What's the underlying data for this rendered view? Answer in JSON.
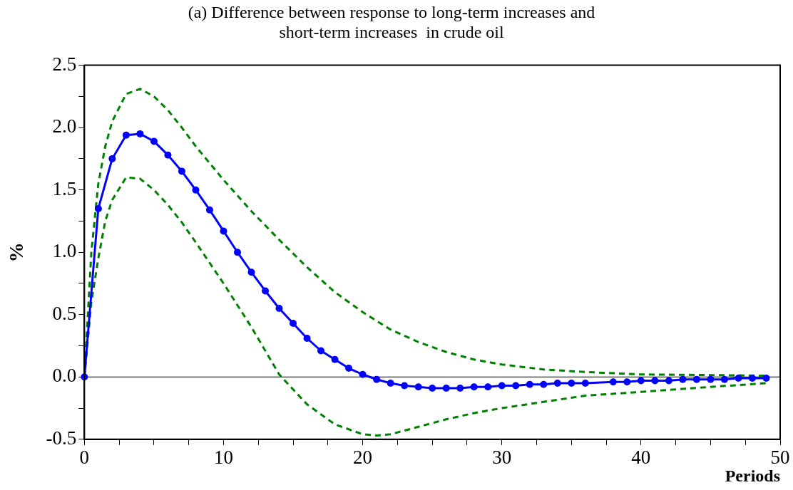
{
  "chart_data": {
    "type": "line",
    "title": "(a) Difference between response to long-term increases and short-term increases  in crude oil",
    "xlabel": "Periods",
    "ylabel": "%",
    "xlim": [
      0,
      50
    ],
    "ylim": [
      -0.5,
      2.5
    ],
    "xticks": [
      0,
      {
        "value": 2.5,
        "label": null
      },
      {
        "value": 5,
        "label": null
      },
      {
        "value": 7.5,
        "label": null
      },
      10,
      {
        "value": 12.5,
        "label": null
      },
      {
        "value": 15,
        "label": null
      },
      {
        "value": 17.5,
        "label": null
      },
      20,
      {
        "value": 22.5,
        "label": null
      },
      {
        "value": 25,
        "label": null
      },
      {
        "value": 27.5,
        "label": null
      },
      30,
      {
        "value": 32.5,
        "label": null
      },
      {
        "value": 35,
        "label": null
      },
      {
        "value": 37.5,
        "label": null
      },
      40,
      {
        "value": 42.5,
        "label": null
      },
      {
        "value": 45,
        "label": null
      },
      {
        "value": 47.5,
        "label": null
      },
      50
    ],
    "yticks": [
      {
        "value": -0.5,
        "label": "-0.5"
      },
      {
        "value": -0.25,
        "label": null
      },
      {
        "value": 0,
        "label": "0.0"
      },
      {
        "value": 0.25,
        "label": null
      },
      {
        "value": 0.5,
        "label": "0.5"
      },
      {
        "value": 0.75,
        "label": null
      },
      {
        "value": 1,
        "label": "1.0"
      },
      {
        "value": 1.25,
        "label": null
      },
      {
        "value": 1.5,
        "label": "1.5"
      },
      {
        "value": 1.75,
        "label": null
      },
      {
        "value": 2,
        "label": "2.0"
      },
      {
        "value": 2.25,
        "label": null
      },
      {
        "value": 2.5,
        "label": "2.5"
      }
    ],
    "grid": false,
    "legend": false,
    "ref_lines": [
      {
        "axis": "y",
        "value": 0,
        "color": "#000000"
      }
    ],
    "series": [
      {
        "color": "#0000ff",
        "marker": "circle",
        "line_style": "solid",
        "x": [
          0,
          1,
          2,
          3,
          4,
          5,
          6,
          7,
          8,
          9,
          10,
          11,
          12,
          13,
          14,
          15,
          16,
          17,
          18,
          19,
          20,
          21,
          22,
          23,
          24,
          25,
          26,
          27,
          28,
          29,
          30,
          31,
          32,
          33,
          34,
          35,
          36,
          38,
          39,
          40,
          41,
          42,
          43,
          44,
          45,
          46,
          47,
          48,
          49
        ],
        "values": [
          0,
          1.35,
          1.75,
          1.94,
          1.95,
          1.89,
          1.78,
          1.65,
          1.5,
          1.34,
          1.17,
          1.0,
          0.84,
          0.69,
          0.55,
          0.43,
          0.31,
          0.21,
          0.14,
          0.07,
          0.02,
          -0.02,
          -0.05,
          -0.07,
          -0.08,
          -0.09,
          -0.09,
          -0.09,
          -0.08,
          -0.08,
          -0.07,
          -0.07,
          -0.06,
          -0.06,
          -0.05,
          -0.05,
          -0.05,
          -0.04,
          -0.04,
          -0.03,
          -0.03,
          -0.03,
          -0.02,
          -0.02,
          -0.02,
          -0.02,
          -0.01,
          -0.01,
          -0.01
        ]
      },
      {
        "color": "#008000",
        "marker": "none",
        "line_style": "dashed",
        "x": [
          0,
          0.5,
          1,
          1.5,
          2,
          3,
          4,
          5,
          6,
          7,
          8,
          10,
          12,
          14,
          16,
          18,
          20,
          22,
          24,
          26,
          28,
          30,
          33,
          36,
          40,
          45,
          49
        ],
        "values": [
          0,
          1.0,
          1.55,
          1.85,
          2.05,
          2.27,
          2.31,
          2.25,
          2.14,
          2.0,
          1.85,
          1.58,
          1.33,
          1.1,
          0.88,
          0.68,
          0.52,
          0.38,
          0.28,
          0.2,
          0.14,
          0.1,
          0.06,
          0.04,
          0.02,
          0.015,
          0.01
        ]
      },
      {
        "color": "#008000",
        "marker": "none",
        "line_style": "dashed",
        "x": [
          0,
          0.5,
          1,
          1.5,
          2,
          3,
          4,
          5,
          6,
          7,
          8,
          10,
          12,
          14,
          16,
          18,
          20,
          21,
          22,
          24,
          26,
          28,
          30,
          33,
          36,
          40,
          45,
          49
        ],
        "values": [
          0,
          0.6,
          0.95,
          1.25,
          1.42,
          1.6,
          1.59,
          1.5,
          1.38,
          1.24,
          1.08,
          0.75,
          0.4,
          0.02,
          -0.22,
          -0.38,
          -0.46,
          -0.47,
          -0.46,
          -0.4,
          -0.34,
          -0.29,
          -0.25,
          -0.2,
          -0.15,
          -0.12,
          -0.08,
          -0.05
        ]
      }
    ]
  }
}
